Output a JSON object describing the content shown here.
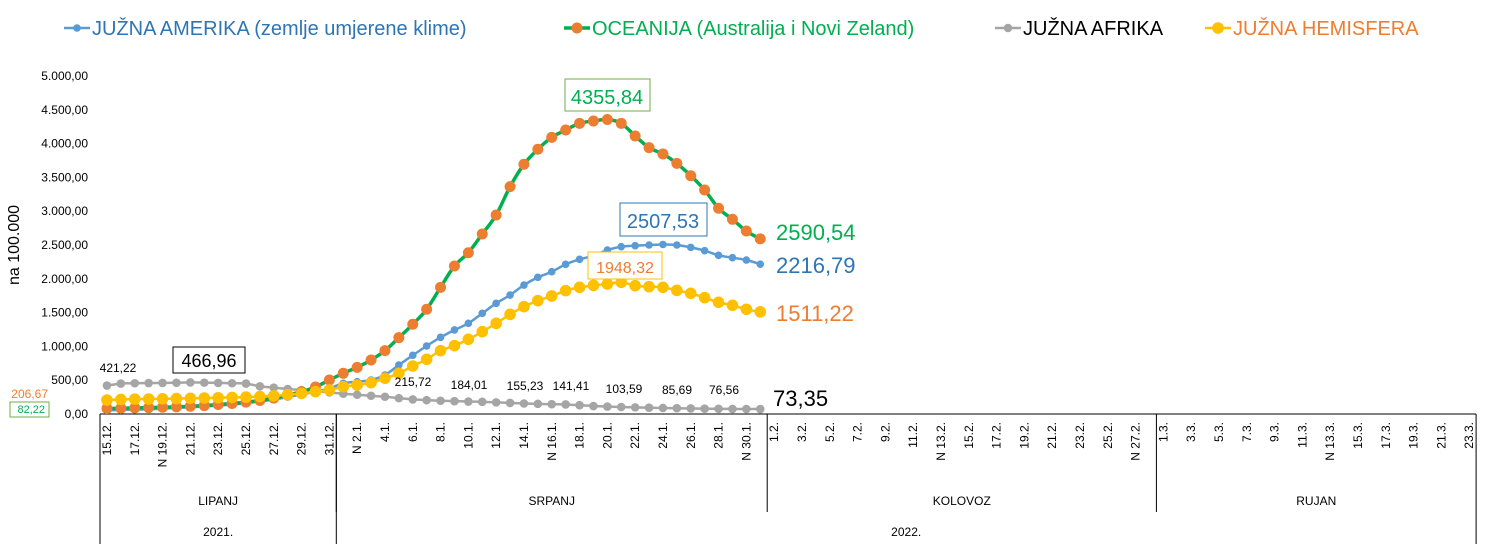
{
  "chart_data": {
    "type": "line",
    "ylabel": "na 100.000",
    "ylim": [
      0,
      5000
    ],
    "yticks": [
      "0,00",
      "500,00",
      "1.000,00",
      "1.500,00",
      "2.000,00",
      "2.500,00",
      "3.000,00",
      "3.500,00",
      "4.000,00",
      "4.500,00",
      "5.000,00"
    ],
    "grid": false,
    "legend_position": "top",
    "x_axis": {
      "months": [
        {
          "label": "LIPANJ",
          "days": [
            15,
            31
          ],
          "suffix": "12."
        },
        {
          "label": "SRPANJ",
          "days": [
            1,
            31
          ],
          "suffix": "1."
        },
        {
          "label": "KOLOVOZ",
          "days": [
            1,
            28
          ],
          "suffix": "2."
        },
        {
          "label": "RUJAN",
          "days": [
            1,
            23
          ],
          "suffix": "3."
        }
      ],
      "years": [
        {
          "label": "2021.",
          "months": 1
        },
        {
          "label": "2022.",
          "months": 3
        }
      ],
      "tick_labels": [
        "15.12.",
        "17.12.",
        "N 19.12.",
        "21.12.",
        "23.12.",
        "25.12.",
        "27.12.",
        "29.12.",
        "31.12.",
        "N  2.1.",
        "4.1.",
        "6.1.",
        "8.1.",
        "10.1.",
        "12.1.",
        "14.1.",
        "N 16.1.",
        "18.1.",
        "20.1.",
        "22.1.",
        "24.1.",
        "26.1.",
        "28.1.",
        "N 30.1.",
        "1.2.",
        "3.2.",
        "5.2.",
        "7.2.",
        "9.2.",
        "11.2.",
        "N 13.2.",
        "15.2.",
        "17.2.",
        "19.2.",
        "21.2.",
        "23.2.",
        "25.2.",
        "N 27.2.",
        "1.3.",
        "3.3.",
        "5.3.",
        "7.3.",
        "9.3.",
        "11.3.",
        "N 13.3.",
        "15.3.",
        "17.3.",
        "19.3.",
        "21.3.",
        "23.3."
      ]
    },
    "x": [
      "15.12.",
      "16.12.",
      "17.12.",
      "18.12.",
      "19.12.",
      "20.12.",
      "21.12.",
      "22.12.",
      "23.12.",
      "24.12.",
      "25.12.",
      "26.12.",
      "27.12.",
      "28.12.",
      "29.12.",
      "30.12.",
      "31.12.",
      "1.1.",
      "2.1.",
      "3.1.",
      "4.1.",
      "5.1.",
      "6.1.",
      "7.1.",
      "8.1.",
      "9.1.",
      "10.1.",
      "11.1.",
      "12.1.",
      "13.1.",
      "14.1.",
      "15.1.",
      "16.1.",
      "17.1.",
      "18.1.",
      "19.1.",
      "20.1.",
      "21.1.",
      "22.1.",
      "23.1.",
      "24.1.",
      "25.1.",
      "26.1.",
      "27.1.",
      "28.1.",
      "29.1.",
      "30.1.",
      "31.1."
    ],
    "series": [
      {
        "name": "JUŽNA AMERIKA (zemlje umjerene klime)",
        "line_color": "#5B9BD5",
        "marker_color": "#5B9BD5",
        "text_color": "#2E75B6",
        "values": [
          55,
          60,
          65,
          70,
          80,
          90,
          100,
          110,
          125,
          140,
          160,
          185,
          215,
          250,
          290,
          330,
          380,
          454,
          478,
          503,
          577,
          725,
          868,
          1006,
          1134,
          1243,
          1341,
          1489,
          1637,
          1760,
          1908,
          2022,
          2105,
          2214,
          2288,
          2342,
          2426,
          2475,
          2490,
          2500,
          2507.53,
          2500,
          2465,
          2416,
          2347,
          2312,
          2278,
          2216.79
        ]
      },
      {
        "name": "OCEANIJA (Australija i Novi Zeland)",
        "line_color": "#00B050",
        "marker_color": "#ED7D31",
        "text_color": "#00B050",
        "values": [
          82.22,
          85,
          90,
          95,
          100,
          105,
          115,
          125,
          140,
          155,
          175,
          200,
          235,
          280,
          330,
          400,
          503,
          602,
          690,
          799,
          937,
          1129,
          1327,
          1549,
          1874,
          2189,
          2386,
          2663,
          2944,
          3363,
          3694,
          3916,
          4093,
          4201,
          4300,
          4334,
          4355.84,
          4300,
          4112,
          3940,
          3846,
          3708,
          3525,
          3314,
          3043,
          2880,
          2707,
          2590.54
        ]
      },
      {
        "name": "JUŽNA AFRIKA",
        "line_color": "#A5A5A5",
        "marker_color": "#A5A5A5",
        "text_color": "#000000",
        "values": [
          421.22,
          450,
          455,
          458,
          460,
          462,
          466.96,
          464,
          460,
          455,
          450,
          410,
          390,
          370,
          355,
          340,
          320,
          300,
          285,
          270,
          255,
          235,
          215.72,
          205,
          196,
          190,
          184.01,
          180,
          172,
          164,
          155.23,
          150,
          145,
          141.41,
          130,
          118,
          110,
          103.59,
          98,
          93,
          89,
          85.69,
          82,
          79,
          76.56,
          75,
          74,
          73.35
        ]
      },
      {
        "name": "JUŽNA HEMISFERA",
        "line_color": "#FFC000",
        "marker_color": "#FFC000",
        "text_color": "#ED7D31",
        "values": [
          206.67,
          215,
          220,
          222,
          225,
          228,
          232,
          236,
          240,
          245,
          250,
          258,
          268,
          285,
          305,
          330,
          355,
          404,
          429,
          463,
          528,
          602,
          710,
          809,
          937,
          1011,
          1105,
          1218,
          1341,
          1474,
          1588,
          1677,
          1746,
          1825,
          1874,
          1903,
          1923,
          1948.32,
          1898,
          1884,
          1874,
          1829,
          1785,
          1721,
          1652,
          1608,
          1549,
          1511.22
        ]
      }
    ],
    "annotations": [
      {
        "text": "421,22",
        "series": 2,
        "date": "15.12."
      },
      {
        "text": "466,96",
        "series": 2,
        "date": "21.12.",
        "boxed": true
      },
      {
        "text": "206,67",
        "series": 3,
        "date": "15.12."
      },
      {
        "text": "82,22",
        "series": 1,
        "date": "15.12.",
        "boxed": true
      },
      {
        "text": "4355,84",
        "series": 1,
        "date": "20.1.",
        "boxed": true
      },
      {
        "text": "2507,53",
        "series": 0,
        "date": "24.1.",
        "boxed": true
      },
      {
        "text": "1948,32",
        "series": 3,
        "date": "21.1.",
        "boxed": true
      },
      {
        "text": "2590,54",
        "series": 1,
        "date": "31.1."
      },
      {
        "text": "2216,79",
        "series": 0,
        "date": "31.1."
      },
      {
        "text": "1511,22",
        "series": 3,
        "date": "31.1."
      },
      {
        "text": "73,35",
        "series": 2,
        "date": "31.1."
      },
      {
        "text": "215,72",
        "series": 2,
        "date": "6.1."
      },
      {
        "text": "184,01",
        "series": 2,
        "date": "10.1."
      },
      {
        "text": "155,23",
        "series": 2,
        "date": "14.1."
      },
      {
        "text": "141,41",
        "series": 2,
        "date": "17.1."
      },
      {
        "text": "103,59",
        "series": 2,
        "date": "21.1."
      },
      {
        "text": "85,69",
        "series": 2,
        "date": "25.1."
      },
      {
        "text": "76,56",
        "series": 2,
        "date": "28.1."
      }
    ]
  }
}
